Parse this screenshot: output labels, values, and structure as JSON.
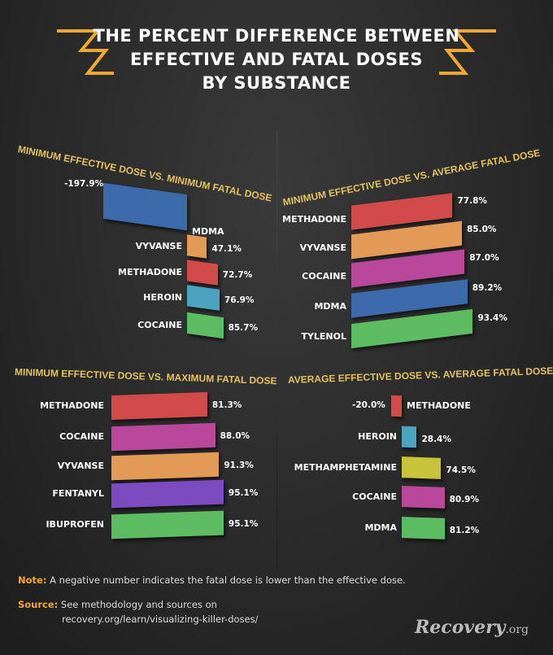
{
  "header": {
    "title_lines": [
      "THE PERCENT DIFFERENCE BETWEEN",
      "EFFECTIVE AND FATAL DOSES",
      "BY SUBSTANCE"
    ]
  },
  "colors": {
    "accent": "#f0a830",
    "title": "#e3c25e",
    "blue": "#3d6aaa",
    "orange": "#e39a57",
    "red": "#d24a4a",
    "teal": "#4aa3bf",
    "green": "#5cbc62",
    "magenta": "#b9489a",
    "purple": "#7b4bbf",
    "yellow": "#c8c43a"
  },
  "chart_data": [
    {
      "type": "bar",
      "title": "MINIMUM EFFECTIVE DOSE VS. MINIMUM FATAL DOSE",
      "categories": [
        "MDMA",
        "VYVANSE",
        "METHADONE",
        "HEROIN",
        "COCAINE"
      ],
      "values": [
        -197.9,
        47.1,
        72.7,
        76.9,
        85.7
      ],
      "value_labels": [
        "-197.9%",
        "47.1%",
        "72.7%",
        "76.9%",
        "85.7%"
      ],
      "bar_colors": [
        "#3d6aaa",
        "#e39a57",
        "#d24a4a",
        "#4aa3bf",
        "#5cbc62"
      ]
    },
    {
      "type": "bar",
      "title": "MINIMUM EFFECTIVE DOSE VS. AVERAGE FATAL DOSE",
      "categories": [
        "METHADONE",
        "VYVANSE",
        "COCAINE",
        "MDMA",
        "TYLENOL"
      ],
      "values": [
        77.8,
        85.0,
        87.0,
        89.2,
        93.4
      ],
      "value_labels": [
        "77.8%",
        "85.0%",
        "87.0%",
        "89.2%",
        "93.4%"
      ],
      "bar_colors": [
        "#d24a4a",
        "#e39a57",
        "#b9489a",
        "#3d6aaa",
        "#5cbc62"
      ]
    },
    {
      "type": "bar",
      "title": "MINIMUM EFFECTIVE DOSE VS. MAXIMUM FATAL DOSE",
      "categories": [
        "METHADONE",
        "COCAINE",
        "VYVANSE",
        "FENTANYL",
        "IBUPROFEN"
      ],
      "values": [
        81.3,
        88.0,
        91.3,
        95.1,
        95.1
      ],
      "value_labels": [
        "81.3%",
        "88.0%",
        "91.3%",
        "95.1%",
        "95.1%"
      ],
      "bar_colors": [
        "#d24a4a",
        "#b9489a",
        "#e39a57",
        "#7b4bbf",
        "#5cbc62"
      ]
    },
    {
      "type": "bar",
      "title": "AVERAGE EFFECTIVE DOSE VS. AVERAGE FATAL DOSE",
      "categories": [
        "METHADONE",
        "HEROIN",
        "METHAMPHETAMINE",
        "COCAINE",
        "MDMA"
      ],
      "values": [
        -20.0,
        28.4,
        74.5,
        80.9,
        81.2
      ],
      "value_labels": [
        "-20.0%",
        "28.4%",
        "74.5%",
        "80.9%",
        "81.2%"
      ],
      "bar_colors": [
        "#d24a4a",
        "#4aa3bf",
        "#c8c43a",
        "#b9489a",
        "#5cbc62"
      ]
    }
  ],
  "footer": {
    "note_label": "Note:",
    "note_text": "A negative number indicates the fatal dose is lower than the effective dose.",
    "source_label": "Source:",
    "source_text": "See methodology and sources on",
    "source_url": "recovery.org/learn/visualizing-killer-doses/",
    "logo_main": "Recovery",
    "logo_suffix": ".org"
  }
}
